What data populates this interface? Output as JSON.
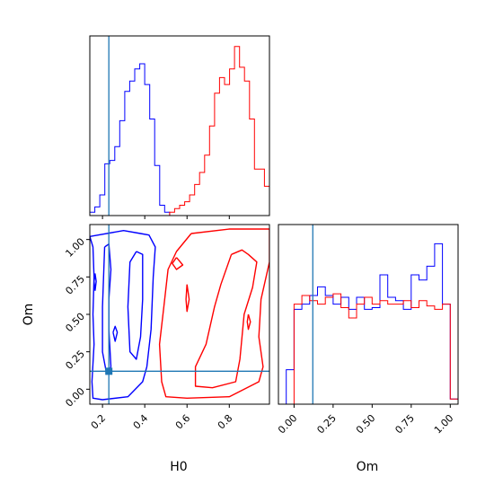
{
  "chart_data": {
    "type": "corner",
    "parameters": [
      "H0",
      "Om"
    ],
    "truth": {
      "H0": 0.23,
      "Om": 0.12
    },
    "colors": {
      "series_a": "#0000ff",
      "series_b": "#ff0000",
      "truth": "#1f77b4"
    },
    "panels": {
      "hist_h0": {
        "type": "histogram",
        "xlim": [
          0.14,
          0.99
        ],
        "bins": 36,
        "series": [
          {
            "color": "#0000ff",
            "counts": [
              0.02,
              0.05,
              0.12,
              0.3,
              0.32,
              0.4,
              0.55,
              0.72,
              0.78,
              0.85,
              0.88,
              0.76,
              0.56,
              0.29,
              0.06,
              0.02,
              0,
              0,
              0,
              0,
              0,
              0,
              0,
              0,
              0,
              0,
              0,
              0,
              0,
              0,
              0,
              0,
              0,
              0,
              0,
              0
            ]
          },
          {
            "color": "#ff0000",
            "counts": [
              0,
              0,
              0,
              0,
              0,
              0,
              0,
              0,
              0,
              0,
              0,
              0,
              0,
              0,
              0,
              0,
              0.02,
              0.04,
              0.06,
              0.08,
              0.12,
              0.18,
              0.25,
              0.35,
              0.52,
              0.71,
              0.8,
              0.76,
              0.85,
              0.98,
              0.86,
              0.78,
              0.56,
              0.27,
              0.27,
              0.17
            ]
          }
        ]
      },
      "hist_om": {
        "type": "histogram",
        "xlim": [
          -0.1,
          1.05
        ],
        "bins": 23,
        "series": [
          {
            "color": "#0000ff",
            "counts": [
              0,
              0.2,
              0.55,
              0.58,
              0.63,
              0.68,
              0.63,
              0.58,
              0.62,
              0.55,
              0.62,
              0.55,
              0.56,
              0.75,
              0.62,
              0.6,
              0.55,
              0.75,
              0.72,
              0.8,
              0.93,
              0.58,
              0.03
            ]
          },
          {
            "color": "#ff0000",
            "counts": [
              0,
              0,
              0.58,
              0.63,
              0.6,
              0.58,
              0.62,
              0.64,
              0.56,
              0.5,
              0.58,
              0.62,
              0.58,
              0.6,
              0.58,
              0.58,
              0.6,
              0.56,
              0.6,
              0.57,
              0.55,
              0.58,
              0.03
            ]
          }
        ]
      },
      "contour_2d": {
        "type": "contour",
        "xlim": [
          0.14,
          0.99
        ],
        "ylim": [
          -0.1,
          1.1
        ],
        "series": [
          {
            "color": "#0000ff",
            "paths": [
              [
                [
                  0.14,
                  1.02
                ],
                [
                  0.3,
                  1.06
                ],
                [
                  0.38,
                  1.04
                ],
                [
                  0.42,
                  1.03
                ],
                [
                  0.45,
                  0.95
                ],
                [
                  0.44,
                  0.75
                ],
                [
                  0.43,
                  0.4
                ],
                [
                  0.41,
                  0.15
                ],
                [
                  0.39,
                  0.05
                ],
                [
                  0.32,
                  -0.05
                ],
                [
                  0.2,
                  -0.07
                ],
                [
                  0.155,
                  -0.06
                ],
                [
                  0.15,
                  0.05
                ],
                [
                  0.16,
                  0.3
                ],
                [
                  0.155,
                  0.5
                ],
                [
                  0.16,
                  0.75
                ],
                [
                  0.155,
                  0.95
                ],
                [
                  0.14,
                  1.02
                ]
              ],
              [
                [
                  0.21,
                  0.95
                ],
                [
                  0.23,
                  0.97
                ],
                [
                  0.24,
                  0.8
                ],
                [
                  0.23,
                  0.6
                ],
                [
                  0.23,
                  0.4
                ],
                [
                  0.24,
                  0.15
                ],
                [
                  0.22,
                  0.1
                ],
                [
                  0.2,
                  0.25
                ],
                [
                  0.2,
                  0.55
                ],
                [
                  0.21,
                  0.95
                ]
              ],
              [
                [
                  0.36,
                  0.92
                ],
                [
                  0.39,
                  0.9
                ],
                [
                  0.39,
                  0.6
                ],
                [
                  0.38,
                  0.35
                ],
                [
                  0.36,
                  0.2
                ],
                [
                  0.33,
                  0.25
                ],
                [
                  0.32,
                  0.55
                ],
                [
                  0.33,
                  0.85
                ],
                [
                  0.36,
                  0.92
                ]
              ],
              [
                [
                  0.25,
                  0.38
                ],
                [
                  0.26,
                  0.42
                ],
                [
                  0.27,
                  0.38
                ],
                [
                  0.26,
                  0.32
                ],
                [
                  0.25,
                  0.38
                ]
              ],
              [
                [
                  0.16,
                  0.72
                ],
                [
                  0.165,
                  0.77
                ],
                [
                  0.17,
                  0.72
                ],
                [
                  0.165,
                  0.66
                ],
                [
                  0.16,
                  0.72
                ]
              ]
            ]
          },
          {
            "color": "#ff0000",
            "paths": [
              [
                [
                  0.62,
                  1.04
                ],
                [
                  0.8,
                  1.07
                ],
                [
                  0.99,
                  1.07
                ],
                [
                  0.99,
                  0.85
                ],
                [
                  0.95,
                  0.6
                ],
                [
                  0.94,
                  0.35
                ],
                [
                  0.96,
                  0.15
                ],
                [
                  0.94,
                  0.05
                ],
                [
                  0.8,
                  -0.05
                ],
                [
                  0.6,
                  -0.06
                ],
                [
                  0.5,
                  -0.05
                ],
                [
                  0.48,
                  0.05
                ],
                [
                  0.47,
                  0.3
                ],
                [
                  0.49,
                  0.55
                ],
                [
                  0.51,
                  0.8
                ],
                [
                  0.55,
                  0.92
                ],
                [
                  0.62,
                  1.04
                ]
              ],
              [
                [
                  0.81,
                  0.9
                ],
                [
                  0.86,
                  0.93
                ],
                [
                  0.89,
                  0.9
                ],
                [
                  0.93,
                  0.85
                ],
                [
                  0.91,
                  0.68
                ],
                [
                  0.87,
                  0.5
                ],
                [
                  0.85,
                  0.2
                ],
                [
                  0.83,
                  0.05
                ],
                [
                  0.72,
                  0.01
                ],
                [
                  0.64,
                  0.02
                ],
                [
                  0.64,
                  0.15
                ],
                [
                  0.69,
                  0.3
                ],
                [
                  0.73,
                  0.55
                ],
                [
                  0.76,
                  0.7
                ],
                [
                  0.81,
                  0.9
                ]
              ],
              [
                [
                  0.55,
                  0.88
                ],
                [
                  0.58,
                  0.83
                ],
                [
                  0.55,
                  0.8
                ],
                [
                  0.53,
                  0.84
                ],
                [
                  0.55,
                  0.88
                ]
              ],
              [
                [
                  0.6,
                  0.7
                ],
                [
                  0.61,
                  0.6
                ],
                [
                  0.6,
                  0.52
                ],
                [
                  0.595,
                  0.6
                ],
                [
                  0.6,
                  0.7
                ]
              ],
              [
                [
                  0.89,
                  0.5
                ],
                [
                  0.9,
                  0.45
                ],
                [
                  0.89,
                  0.4
                ],
                [
                  0.885,
                  0.45
                ],
                [
                  0.89,
                  0.5
                ]
              ]
            ]
          }
        ]
      }
    },
    "axes": {
      "contour_x": {
        "label": "H0",
        "ticks": [
          0.2,
          0.4,
          0.6,
          0.8
        ],
        "tick_labels": [
          "0.2",
          "0.4",
          "0.6",
          "0.8"
        ]
      },
      "contour_y": {
        "label": "Om",
        "ticks": [
          0.0,
          0.25,
          0.5,
          0.75,
          1.0
        ],
        "tick_labels": [
          "0.00",
          "0.25",
          "0.50",
          "0.75",
          "1.00"
        ]
      },
      "om_hist_x": {
        "label": "Om",
        "ticks": [
          0.0,
          0.25,
          0.5,
          0.75,
          1.0
        ],
        "tick_labels": [
          "0.00",
          "0.25",
          "0.50",
          "0.75",
          "1.00"
        ]
      },
      "h0_hist_x": {
        "ticks": [
          0.2,
          0.4,
          0.6,
          0.8
        ]
      }
    }
  }
}
